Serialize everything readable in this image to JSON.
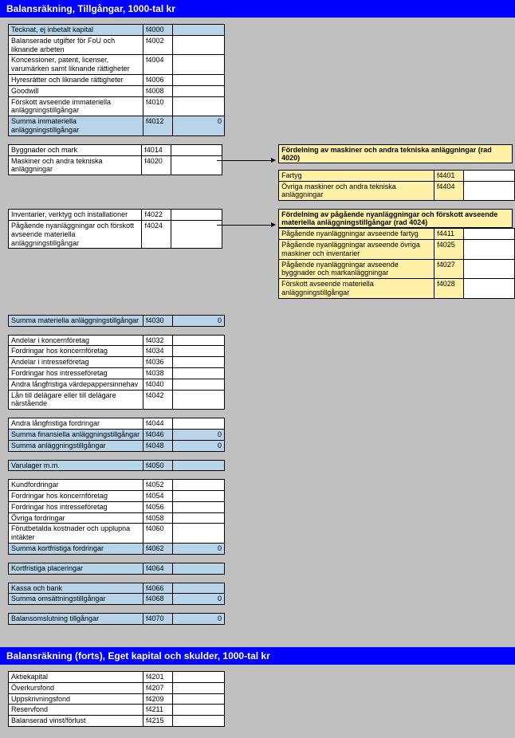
{
  "header1": "Balansräkning, Tillgångar, 1000-tal kr",
  "header2": "Balansräkning (forts), Eget kapital och skulder, 1000-tal kr",
  "rows1": [
    {
      "label": "Tecknat, ej inbetalt kapital",
      "code": "f4000",
      "sum": true,
      "val": ""
    },
    {
      "label": "Balanserade utgifter för FoU och liknande arbeten",
      "code": "f4002",
      "val": ""
    },
    {
      "label": "Koncessioner, patent, licenser, varumärken samt liknande rättigheter",
      "code": "f4004",
      "val": ""
    },
    {
      "label": "Hyresrätter och liknande rättigheter",
      "code": "f4006",
      "val": ""
    },
    {
      "label": "Goodwill",
      "code": "f4008",
      "val": ""
    },
    {
      "label": "Förskott avseende immateriella anläggningstillgångar",
      "code": "f4010",
      "val": ""
    },
    {
      "label": "Summa immateriella anläggningstillgångar",
      "code": "f4012",
      "sum": true,
      "val": "0"
    }
  ],
  "rows2": [
    {
      "label": "Byggnader och mark",
      "code": "f4014",
      "val": ""
    },
    {
      "label": "Maskiner och andra tekniska anläggningar",
      "code": "f4020",
      "val": ""
    }
  ],
  "side1_hdr": "Fördelning av maskiner och andra tekniska anläggningar (rad 4020)",
  "side1": [
    {
      "label": "Fartyg",
      "code": "f4401",
      "val": ""
    },
    {
      "label": "Övriga maskiner och andra tekniska anläggningar",
      "code": "f4404",
      "val": ""
    }
  ],
  "rows3": [
    {
      "label": "Inventarier, verktyg och installationer",
      "code": "f4022",
      "val": ""
    },
    {
      "label": "Pågående nyanläggningar och förskott avseende materiella anläggningstillgångar",
      "code": "f4024",
      "val": ""
    }
  ],
  "side2_hdr": "Fördelning av pågående nyanläggningar och förskott avseende materiella anläggningstillgångar (rad 4024)",
  "side2": [
    {
      "label": "Pågående nyanläggningar avseende fartyg",
      "code": "f4411",
      "val": ""
    },
    {
      "label": "Pågående nyanläggningar avseende övriga maskiner och inventarier",
      "code": "f4025",
      "val": ""
    },
    {
      "label": "Pågående nyanläggningar avseende byggnader och markanläggningar",
      "code": "f4027",
      "val": ""
    },
    {
      "label": "Förskott avseende materiella anläggningstillgångar",
      "code": "f4028",
      "val": ""
    }
  ],
  "rows4": [
    {
      "label": "Summa materiella anläggningstillgångar",
      "code": "f4030",
      "sum": true,
      "val": "0"
    }
  ],
  "rows5": [
    {
      "label": "Andelar i koncernföretag",
      "code": "f4032",
      "val": ""
    },
    {
      "label": "Fordringar hos koncernföretag",
      "code": "f4034",
      "val": ""
    },
    {
      "label": "Andelar i intresseföretag",
      "code": "f4036",
      "val": ""
    },
    {
      "label": "Fordringar hos intresseföretag",
      "code": "f4038",
      "val": ""
    },
    {
      "label": "Andra långfristiga värdepappersinnehav",
      "code": "f4040",
      "val": ""
    },
    {
      "label": "Lån till delägare eller till delägare närstående",
      "code": "f4042",
      "val": ""
    }
  ],
  "rows6": [
    {
      "label": "Andra långfristiga fordringar",
      "code": "f4044",
      "val": ""
    },
    {
      "label": "Summa finansiella anläggningstillgångar",
      "code": "f4046",
      "sum": true,
      "val": "0"
    },
    {
      "label": "Summa anläggningstillgångar",
      "code": "f4048",
      "sum": true,
      "val": "0"
    }
  ],
  "rows7": [
    {
      "label": "Varulager m.m.",
      "code": "f4050",
      "sum": true,
      "val": ""
    }
  ],
  "rows8": [
    {
      "label": "Kundfordringar",
      "code": "f4052",
      "val": ""
    },
    {
      "label": "Fordringar hos koncernföretag",
      "code": "f4054",
      "val": ""
    },
    {
      "label": "Fordringar hos intresseföretag",
      "code": "f4056",
      "val": ""
    },
    {
      "label": "Övriga fordringar",
      "code": "f4058",
      "val": ""
    },
    {
      "label": "Förutbetalda kostnader och upplupna intäkter",
      "code": "f4060",
      "val": ""
    },
    {
      "label": "Summa kortfristiga fordringar",
      "code": "f4062",
      "sum": true,
      "val": "0"
    }
  ],
  "rows9": [
    {
      "label": "Kortfristiga placeringar",
      "code": "f4064",
      "sum": true,
      "val": ""
    }
  ],
  "rows10": [
    {
      "label": "Kassa och bank",
      "code": "f4066",
      "sum": true,
      "val": ""
    },
    {
      "label": "Summa omsättningstillgångar",
      "code": "f4068",
      "sum": true,
      "val": "0"
    }
  ],
  "rows11": [
    {
      "label": "Balansomslutning tillgångar",
      "code": "f4070",
      "sum": true,
      "val": "0"
    }
  ],
  "rows12": [
    {
      "label": "Aktiekapital",
      "code": "f4201",
      "val": ""
    },
    {
      "label": "Överkursfond",
      "code": "f4207",
      "val": ""
    },
    {
      "label": "Uppskrivningsfond",
      "code": "f4209",
      "val": ""
    },
    {
      "label": "Reservfond",
      "code": "f4211",
      "val": ""
    },
    {
      "label": "Balanserad vinst/förlust",
      "code": "f4215",
      "val": ""
    }
  ]
}
